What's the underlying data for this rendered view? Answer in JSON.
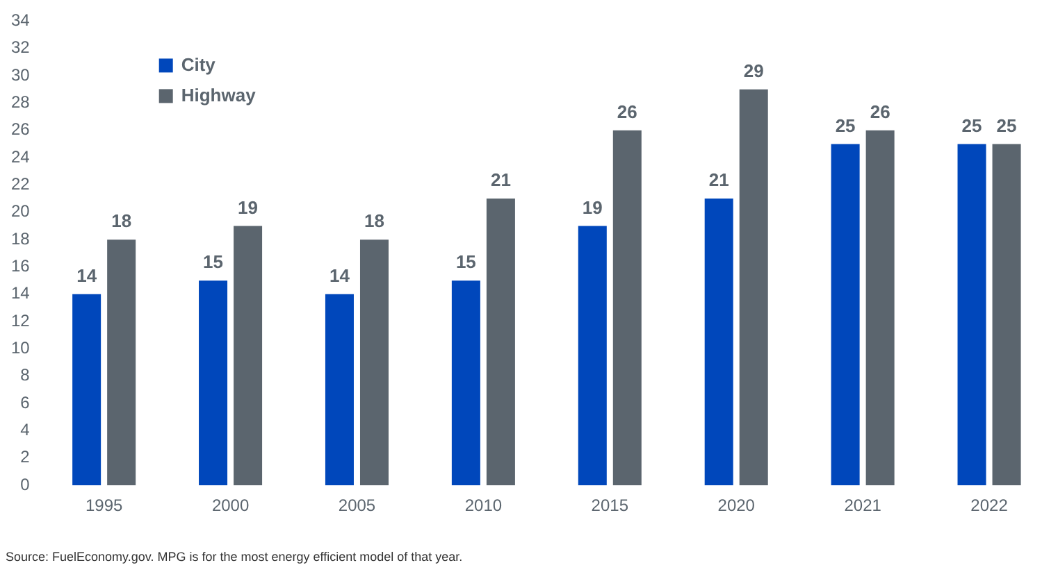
{
  "chart_data": {
    "type": "bar",
    "categories": [
      "1995",
      "2000",
      "2005",
      "2010",
      "2015",
      "2020",
      "2021",
      "2022"
    ],
    "series": [
      {
        "name": "City",
        "color": "#0047bb",
        "values": [
          14,
          15,
          14,
          15,
          19,
          21,
          25,
          25
        ]
      },
      {
        "name": "Highway",
        "color": "#5b656e",
        "values": [
          18,
          19,
          18,
          21,
          26,
          29,
          26,
          25
        ]
      }
    ],
    "ylim": [
      0,
      34
    ],
    "yticks": [
      0,
      2,
      4,
      6,
      8,
      10,
      12,
      14,
      16,
      18,
      20,
      22,
      24,
      26,
      28,
      30,
      32,
      34
    ],
    "grid": false,
    "legend": "top left",
    "data_labels": true,
    "annotations": [
      "Source: FuelEconomy.gov. MPG is for the most energy efficient model of that year."
    ]
  }
}
